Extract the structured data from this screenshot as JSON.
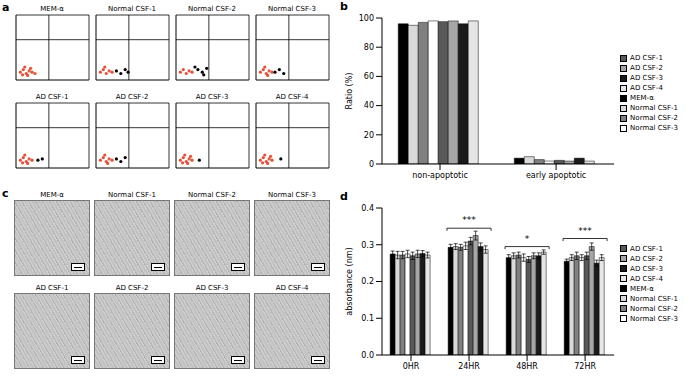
{
  "chart_data": [
    {
      "type": "scatter",
      "panel": "a",
      "title": "MEM-α",
      "xlim": [
        0,
        100
      ],
      "ylim": [
        0,
        100
      ],
      "tick_labels": false,
      "quadrant": {
        "x": 45,
        "y": 62
      },
      "x": [
        6,
        10,
        14,
        18,
        22,
        12,
        16,
        9,
        20,
        26
      ],
      "y": [
        12,
        16,
        10,
        14,
        12,
        20,
        7,
        8,
        18,
        10
      ],
      "colors": [
        "#e8503a",
        "#e8503a",
        "#e8503a",
        "#e8503a",
        "#e8503a",
        "#e8503a",
        "#e8503a",
        "#e8503a",
        "#e8503a",
        "#e8503a"
      ]
    },
    {
      "type": "scatter",
      "title": "Normal CSF-1",
      "xlim": [
        0,
        100
      ],
      "ylim": [
        0,
        100
      ],
      "tick_labels": false,
      "quadrant": {
        "x": 45,
        "y": 62
      },
      "x": [
        6,
        10,
        14,
        18,
        22,
        12,
        28,
        34,
        40,
        44
      ],
      "y": [
        12,
        16,
        10,
        14,
        12,
        20,
        14,
        10,
        16,
        12
      ],
      "colors": [
        "#e8503a",
        "#e8503a",
        "#e8503a",
        "#e8503a",
        "#e8503a",
        "#e8503a",
        "#000000",
        "#000000",
        "#000000",
        "#000000"
      ]
    },
    {
      "type": "scatter",
      "title": "Normal CSF-2",
      "xlim": [
        0,
        100
      ],
      "ylim": [
        0,
        100
      ],
      "tick_labels": false,
      "quadrant": {
        "x": 45,
        "y": 62
      },
      "x": [
        6,
        10,
        14,
        18,
        22,
        30,
        36,
        42,
        26,
        38
      ],
      "y": [
        12,
        16,
        10,
        14,
        12,
        16,
        12,
        18,
        20,
        8
      ],
      "colors": [
        "#e8503a",
        "#e8503a",
        "#e8503a",
        "#e8503a",
        "#e8503a",
        "#000000",
        "#000000",
        "#000000",
        "#000000",
        "#000000"
      ]
    },
    {
      "type": "scatter",
      "title": "Normal CSF-3",
      "xlim": [
        0,
        100
      ],
      "ylim": [
        0,
        100
      ],
      "tick_labels": false,
      "quadrant": {
        "x": 45,
        "y": 62
      },
      "x": [
        6,
        10,
        14,
        18,
        22,
        12,
        26,
        32,
        38,
        16
      ],
      "y": [
        12,
        16,
        10,
        14,
        12,
        20,
        12,
        16,
        10,
        7
      ],
      "colors": [
        "#e8503a",
        "#e8503a",
        "#e8503a",
        "#e8503a",
        "#e8503a",
        "#e8503a",
        "#000000",
        "#000000",
        "#000000",
        "#e8503a"
      ]
    },
    {
      "type": "scatter",
      "title": "AD CSF-1",
      "xlim": [
        0,
        100
      ],
      "ylim": [
        0,
        100
      ],
      "tick_labels": false,
      "quadrant": {
        "x": 45,
        "y": 62
      },
      "x": [
        6,
        10,
        14,
        18,
        22,
        12,
        16,
        9,
        30,
        36
      ],
      "y": [
        12,
        16,
        10,
        14,
        12,
        20,
        7,
        8,
        12,
        14
      ],
      "colors": [
        "#e8503a",
        "#e8503a",
        "#e8503a",
        "#e8503a",
        "#e8503a",
        "#e8503a",
        "#e8503a",
        "#e8503a",
        "#000000",
        "#000000"
      ]
    },
    {
      "type": "scatter",
      "title": "AD CSF-2",
      "xlim": [
        0,
        100
      ],
      "ylim": [
        0,
        100
      ],
      "tick_labels": false,
      "quadrant": {
        "x": 45,
        "y": 62
      },
      "x": [
        6,
        10,
        14,
        18,
        22,
        12,
        16,
        28,
        34,
        40
      ],
      "y": [
        12,
        16,
        10,
        14,
        12,
        20,
        7,
        14,
        10,
        16
      ],
      "colors": [
        "#e8503a",
        "#e8503a",
        "#e8503a",
        "#e8503a",
        "#e8503a",
        "#e8503a",
        "#e8503a",
        "#000000",
        "#000000",
        "#000000"
      ]
    },
    {
      "type": "scatter",
      "title": "AD CSF-3",
      "xlim": [
        0,
        100
      ],
      "ylim": [
        0,
        100
      ],
      "tick_labels": false,
      "quadrant": {
        "x": 45,
        "y": 62
      },
      "x": [
        6,
        10,
        14,
        18,
        22,
        12,
        16,
        9,
        20,
        32
      ],
      "y": [
        12,
        16,
        10,
        14,
        12,
        20,
        7,
        8,
        18,
        12
      ],
      "colors": [
        "#e8503a",
        "#e8503a",
        "#e8503a",
        "#e8503a",
        "#e8503a",
        "#e8503a",
        "#e8503a",
        "#e8503a",
        "#e8503a",
        "#000000"
      ]
    },
    {
      "type": "scatter",
      "title": "AD CSF-4",
      "xlim": [
        0,
        100
      ],
      "ylim": [
        0,
        100
      ],
      "tick_labels": false,
      "quadrant": {
        "x": 45,
        "y": 62
      },
      "x": [
        6,
        10,
        14,
        18,
        22,
        12,
        16,
        9,
        20,
        34
      ],
      "y": [
        12,
        16,
        10,
        14,
        12,
        20,
        7,
        8,
        18,
        14
      ],
      "colors": [
        "#e8503a",
        "#e8503a",
        "#e8503a",
        "#e8503a",
        "#e8503a",
        "#e8503a",
        "#e8503a",
        "#e8503a",
        "#e8503a",
        "#000000"
      ]
    },
    {
      "type": "bar",
      "panel": "b",
      "ylabel": "Ratio (%)",
      "categories": [
        "non-apoptotic",
        "early apoptotic"
      ],
      "ylim": [
        0,
        100
      ],
      "yticks": [
        0,
        20,
        40,
        60,
        80,
        100
      ],
      "legend": "right",
      "series": [
        {
          "name": "MEM-α",
          "color": "#000000",
          "values": [
            96,
            4
          ]
        },
        {
          "name": "Normal CSF-1",
          "color": "#d9d9d9",
          "values": [
            95,
            5
          ]
        },
        {
          "name": "Normal CSF-2",
          "color": "#808080",
          "values": [
            97,
            3
          ]
        },
        {
          "name": "Normal CSF-3",
          "color": "#ffffff",
          "values": [
            98,
            2
          ]
        },
        {
          "name": "AD CSF-1",
          "color": "#595959",
          "values": [
            97.5,
            2.5
          ]
        },
        {
          "name": "AD CSF-2",
          "color": "#a6a6a6",
          "values": [
            98,
            2
          ]
        },
        {
          "name": "AD CSF-3",
          "color": "#1a1a1a",
          "values": [
            96,
            4
          ]
        },
        {
          "name": "AD CSF-4",
          "color": "#e6e6e6",
          "values": [
            98,
            2
          ]
        }
      ]
    },
    {
      "type": "image",
      "panel": "c",
      "title": "MEM-α"
    },
    {
      "type": "image",
      "title": "Normal CSF-1"
    },
    {
      "type": "image",
      "title": "Normal CSF-2"
    },
    {
      "type": "image",
      "title": "Normal CSF-3"
    },
    {
      "type": "image",
      "title": "AD CSF-1"
    },
    {
      "type": "image",
      "title": "AD CSF-2"
    },
    {
      "type": "image",
      "title": "AD CSF-3"
    },
    {
      "type": "image",
      "title": "AD CSF-4"
    },
    {
      "type": "bar",
      "panel": "d",
      "ylabel": "absorbance (nm)",
      "categories": [
        "0HR",
        "24HR",
        "48HR",
        "72HR"
      ],
      "ylim": [
        0,
        0.4
      ],
      "yticks": [
        {
          "value": 0,
          "label": "0.0"
        },
        {
          "value": 0.1,
          "label": "0.1"
        },
        {
          "value": 0.2,
          "label": "0.2"
        },
        {
          "value": 0.3,
          "label": "0.3"
        },
        {
          "value": 0.4,
          "label": "0.4"
        }
      ],
      "legend": "right",
      "series": [
        {
          "name": "MEM-α",
          "color": "#000000",
          "values": [
            0.275,
            0.293,
            0.265,
            0.255
          ],
          "errors": [
            0.008,
            0.008,
            0.008,
            0.006
          ]
        },
        {
          "name": "Normal CSF-1",
          "color": "#d9d9d9",
          "values": [
            0.272,
            0.295,
            0.27,
            0.265
          ],
          "errors": [
            0.01,
            0.008,
            0.008,
            0.008
          ]
        },
        {
          "name": "Normal CSF-2",
          "color": "#808080",
          "values": [
            0.272,
            0.293,
            0.272,
            0.27
          ],
          "errors": [
            0.01,
            0.008,
            0.008,
            0.01
          ]
        },
        {
          "name": "Normal CSF-3",
          "color": "#ffffff",
          "values": [
            0.275,
            0.297,
            0.265,
            0.265
          ],
          "errors": [
            0.01,
            0.01,
            0.01,
            0.008
          ]
        },
        {
          "name": "AD CSF-1",
          "color": "#595959",
          "values": [
            0.27,
            0.31,
            0.26,
            0.27
          ],
          "errors": [
            0.01,
            0.01,
            0.008,
            0.01
          ]
        },
        {
          "name": "AD CSF-2",
          "color": "#a6a6a6",
          "values": [
            0.275,
            0.325,
            0.27,
            0.295
          ],
          "errors": [
            0.01,
            0.012,
            0.008,
            0.01
          ]
        },
        {
          "name": "AD CSF-3",
          "color": "#1a1a1a",
          "values": [
            0.276,
            0.295,
            0.27,
            0.25
          ],
          "errors": [
            0.008,
            0.01,
            0.008,
            0.008
          ]
        },
        {
          "name": "AD CSF-4",
          "color": "#e6e6e6",
          "values": [
            0.272,
            0.287,
            0.28,
            0.265
          ],
          "errors": [
            0.008,
            0.01,
            0.006,
            0.008
          ]
        }
      ],
      "annotations": [
        {
          "category": "24HR",
          "label": "***",
          "y": [
            0.338,
            0.345
          ]
        },
        {
          "category": "48HR",
          "label": "*",
          "y": [
            0.288,
            0.295
          ]
        },
        {
          "category": "72HR",
          "label": "***",
          "y": [
            0.31,
            0.317
          ]
        }
      ]
    }
  ]
}
